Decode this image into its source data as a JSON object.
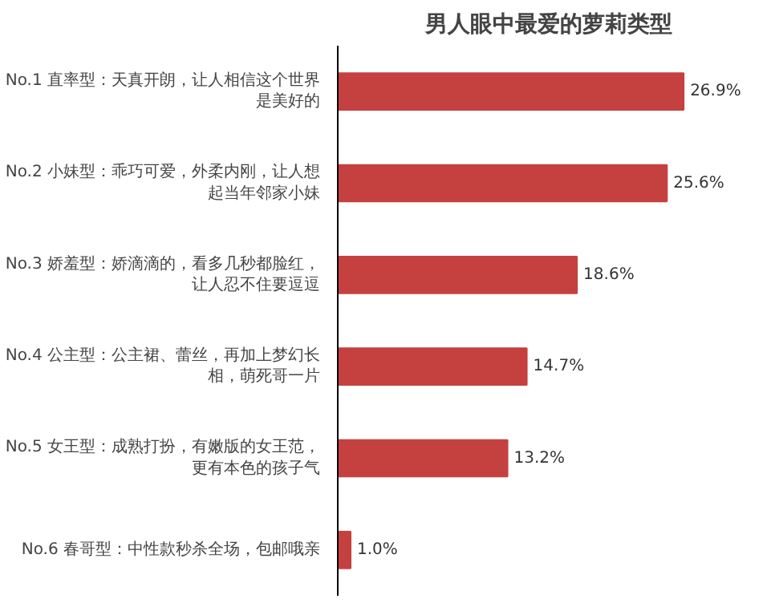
{
  "chart_data": {
    "type": "bar",
    "orientation": "horizontal",
    "title": "男人眼中最爱的萝莉类型",
    "categories": [
      "No.1 直率型：天真开朗，让人相信这个世界是美好的",
      "No.2 小妹型：乖巧可爱，外柔内刚，让人想起当年邻家小妹",
      "No.3 娇羞型：娇滴滴的，看多几秒都脸红，让人忍不住要逗逗",
      "No.4 公主型：公主裙、蕾丝，再加上梦幻长相，萌死哥一片",
      "No.5 女王型：成熟打扮，有嫩版的女王范，更有本色的孩子气",
      "No.6 春哥型：中性款秒杀全场，包邮哦亲"
    ],
    "values": [
      26.9,
      25.6,
      18.6,
      14.7,
      13.2,
      1.0
    ],
    "value_labels": [
      "26.9%",
      "25.6%",
      "18.6%",
      "14.7%",
      "13.2%",
      "1.0%"
    ],
    "color": "#c4413f",
    "grid": false
  }
}
